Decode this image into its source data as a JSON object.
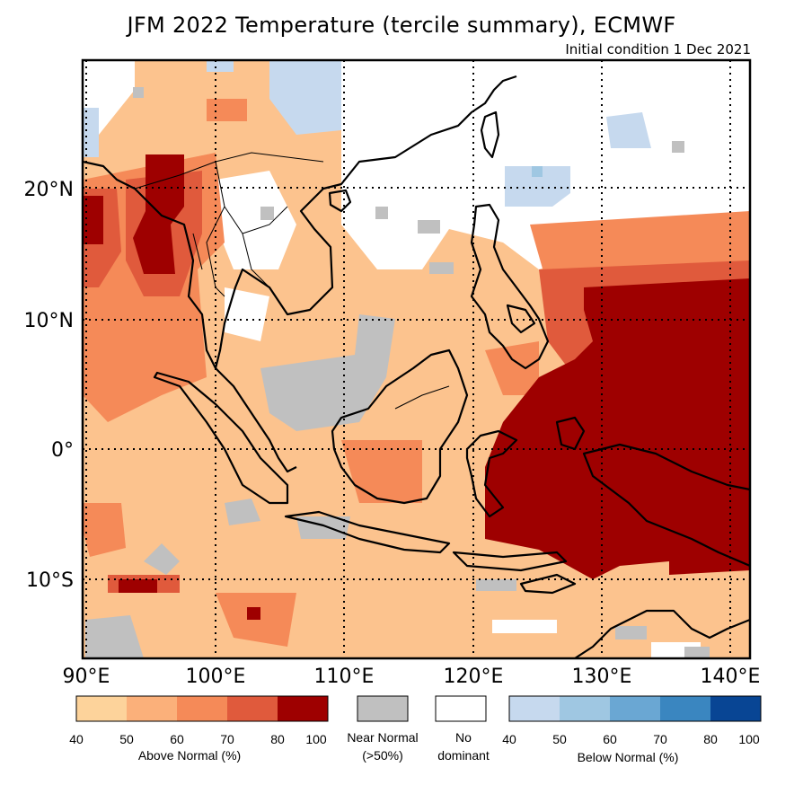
{
  "title": "JFM 2022 Temperature (tercile summary), ECMWF",
  "subtitle": "Initial condition 1 Dec 2021",
  "map": {
    "lat_labels": [
      "20°N",
      "10°N",
      "0°",
      "10°S"
    ],
    "lon_labels": [
      "90°E",
      "100°E",
      "110°E",
      "120°E",
      "130°E",
      "140°E"
    ]
  },
  "legend": {
    "above": {
      "caption": "Above Normal (%)",
      "ticks": [
        "40",
        "50",
        "60",
        "70",
        "80",
        "100"
      ],
      "colors": [
        "#fdd39b",
        "#fbb07a",
        "#f58a58",
        "#e05a3c",
        "#9e0000"
      ]
    },
    "near": {
      "caption_line1": "Near Normal",
      "caption_line2": "(>50%)",
      "color": "#c0c0c0"
    },
    "nodom": {
      "caption_line1": "No",
      "caption_line2": "dominant",
      "color": "#ffffff"
    },
    "below": {
      "caption": "Below Normal (%)",
      "ticks": [
        "40",
        "50",
        "60",
        "70",
        "80",
        "100"
      ],
      "colors": [
        "#c6d9ee",
        "#9fc7e2",
        "#6aa7d3",
        "#3a86c0",
        "#084594"
      ]
    }
  }
}
